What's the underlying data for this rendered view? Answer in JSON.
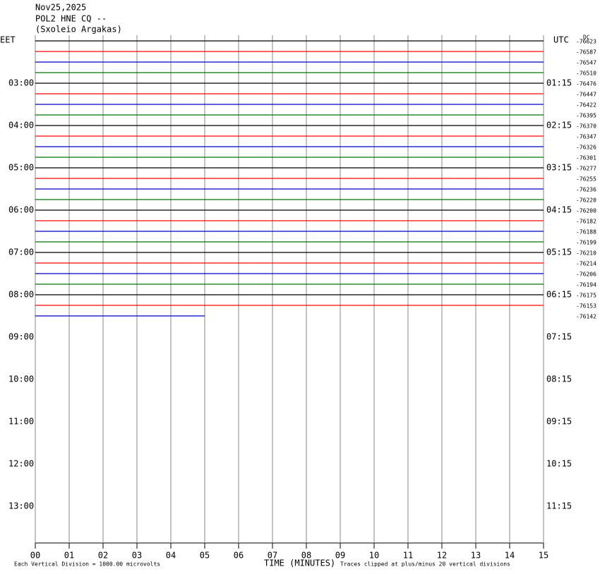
{
  "chart_data": {
    "type": "helicorder",
    "title": "Nov25,2025",
    "subtitle": "POL2 HNE CQ --",
    "station": "(Sxoleio Argakas)",
    "left_axis_title": "EET",
    "right_axis_title": "UTC",
    "dc_title": "DC",
    "x_label": "TIME (MINUTES)",
    "scale_note": "Each Vertical Division = 1000.00 microvolts",
    "clip_note": "Traces clipped at plus/minus 20 vertical divisions",
    "xlim": [
      0,
      15
    ],
    "xticks": [
      {
        "value": 0,
        "label": "00"
      },
      {
        "value": 1,
        "label": "01"
      },
      {
        "value": 2,
        "label": "02"
      },
      {
        "value": 3,
        "label": "03"
      },
      {
        "value": 4,
        "label": "04"
      },
      {
        "value": 5,
        "label": "05"
      },
      {
        "value": 6,
        "label": "06"
      },
      {
        "value": 7,
        "label": "07"
      },
      {
        "value": 8,
        "label": "08"
      },
      {
        "value": 9,
        "label": "09"
      },
      {
        "value": 10,
        "label": "10"
      },
      {
        "value": 11,
        "label": "11"
      },
      {
        "value": 12,
        "label": "12"
      },
      {
        "value": 13,
        "label": "13"
      },
      {
        "value": 14,
        "label": "14"
      },
      {
        "value": 15,
        "label": "15"
      }
    ],
    "left_labels": [
      "03:00",
      "04:00",
      "05:00",
      "06:00",
      "07:00",
      "08:00",
      "09:00",
      "10:00",
      "11:00",
      "12:00",
      "13:00"
    ],
    "right_labels": [
      "01:15",
      "02:15",
      "03:15",
      "04:15",
      "05:15",
      "06:15",
      "07:15",
      "08:15",
      "09:15",
      "10:15",
      "11:15"
    ],
    "colors": [
      "#000000",
      "#ff0000",
      "#0000cc",
      "#007700"
    ],
    "dc": [
      -76623,
      -76587,
      -76547,
      -76510,
      -76476,
      -76447,
      -76422,
      -76395,
      -76370,
      -76347,
      -76326,
      -76301,
      -76277,
      -76255,
      -76236,
      -76220,
      -76200,
      -76182,
      -76188,
      -76199,
      -76210,
      -76214,
      -76206,
      -76194,
      -76175,
      -76153,
      -76142
    ],
    "trace_end": [
      15,
      15,
      15,
      15,
      15,
      15,
      15,
      15,
      15,
      15,
      15,
      15,
      15,
      15,
      15,
      15,
      15,
      15,
      15,
      15,
      15,
      15,
      15,
      15,
      15,
      15,
      5
    ]
  }
}
